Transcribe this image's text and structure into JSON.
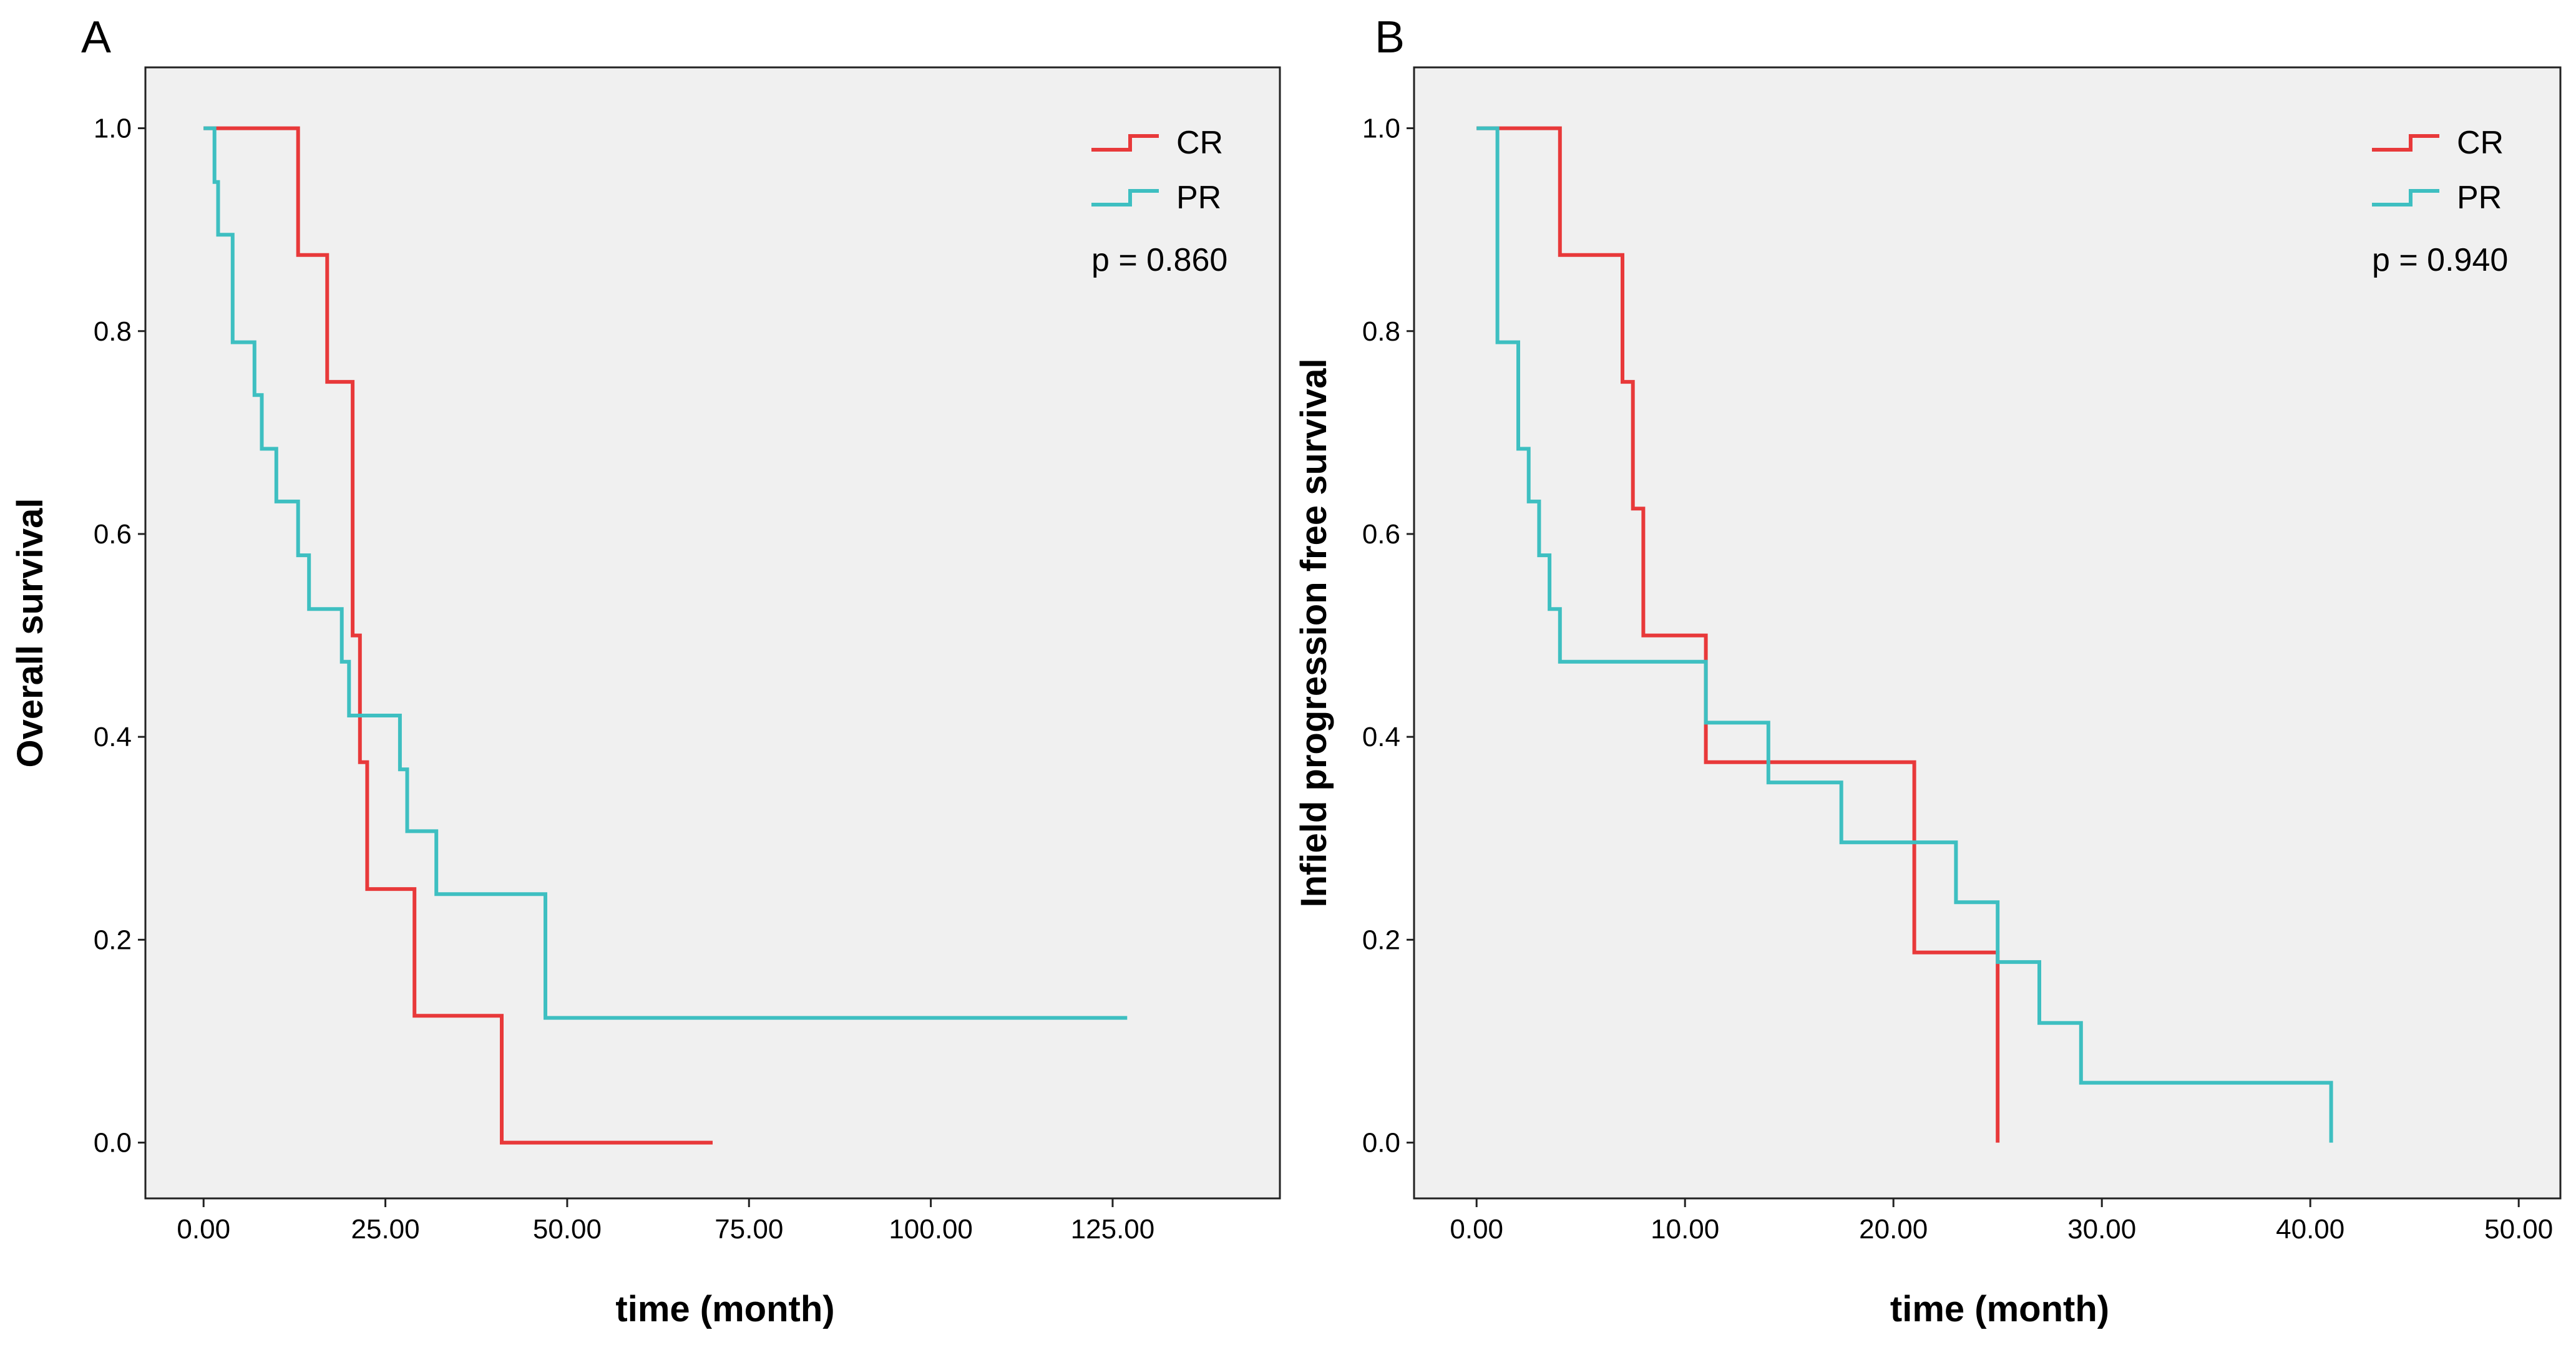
{
  "chart_data": [
    {
      "type": "line",
      "panel_label": "A",
      "title": "",
      "xlabel": "time (month)",
      "ylabel": "Overall survival",
      "xlim": [
        -8,
        148
      ],
      "ylim": [
        -0.055,
        1.06
      ],
      "xticks": [
        0,
        25,
        50,
        75,
        100,
        125
      ],
      "xtick_labels": [
        "0.00",
        "25.00",
        "50.00",
        "75.00",
        "100.00",
        "125.00"
      ],
      "yticks": [
        0.0,
        0.2,
        0.4,
        0.6,
        0.8,
        1.0
      ],
      "ytick_labels": [
        "0.0",
        "0.2",
        "0.4",
        "0.6",
        "0.8",
        "1.0"
      ],
      "grid": false,
      "legend_position": "top-right",
      "annotation": "p = 0.860",
      "series": [
        {
          "name": "CR",
          "color": "#e8393a",
          "x": [
            0,
            13,
            13,
            17,
            17,
            20.5,
            20.5,
            21.5,
            21.5,
            22.5,
            22.5,
            29,
            29,
            41,
            41,
            70,
            70
          ],
          "y": [
            1.0,
            1.0,
            0.875,
            0.875,
            0.75,
            0.75,
            0.5,
            0.5,
            0.375,
            0.375,
            0.25,
            0.25,
            0.125,
            0.125,
            0.0,
            0.0,
            0.0
          ]
        },
        {
          "name": "PR",
          "color": "#3ebfc1",
          "x": [
            0,
            1.5,
            1.5,
            2,
            2,
            4,
            4,
            7,
            7,
            8,
            8,
            10,
            10,
            13,
            13,
            14.5,
            14.5,
            19,
            19,
            20,
            20,
            27,
            27,
            28,
            28,
            32,
            32,
            47,
            47,
            127
          ],
          "y": [
            1.0,
            1.0,
            0.947,
            0.947,
            0.895,
            0.895,
            0.789,
            0.789,
            0.737,
            0.737,
            0.684,
            0.684,
            0.632,
            0.632,
            0.579,
            0.579,
            0.526,
            0.526,
            0.474,
            0.474,
            0.421,
            0.421,
            0.368,
            0.368,
            0.307,
            0.307,
            0.245,
            0.245,
            0.123,
            0.123
          ]
        }
      ]
    },
    {
      "type": "line",
      "panel_label": "B",
      "title": "",
      "xlabel": "time (month)",
      "ylabel": "Infield progression free survival",
      "xlim": [
        -3,
        52
      ],
      "ylim": [
        -0.055,
        1.06
      ],
      "xticks": [
        0,
        10,
        20,
        30,
        40,
        50
      ],
      "xtick_labels": [
        "0.00",
        "10.00",
        "20.00",
        "30.00",
        "40.00",
        "50.00"
      ],
      "yticks": [
        0.0,
        0.2,
        0.4,
        0.6,
        0.8,
        1.0
      ],
      "ytick_labels": [
        "0.0",
        "0.2",
        "0.4",
        "0.6",
        "0.8",
        "1.0"
      ],
      "grid": false,
      "legend_position": "top-right",
      "annotation": "p = 0.940",
      "series": [
        {
          "name": "CR",
          "color": "#e8393a",
          "x": [
            0,
            4,
            4,
            7,
            7,
            7.5,
            7.5,
            8,
            8,
            11,
            11,
            21,
            21,
            25,
            25
          ],
          "y": [
            1.0,
            1.0,
            0.875,
            0.875,
            0.75,
            0.75,
            0.625,
            0.625,
            0.5,
            0.5,
            0.375,
            0.375,
            0.1875,
            0.1875,
            0.0
          ]
        },
        {
          "name": "PR",
          "color": "#3ebfc1",
          "x": [
            0,
            1,
            1,
            2,
            2,
            2.5,
            2.5,
            3,
            3,
            3.5,
            3.5,
            4,
            4,
            11,
            11,
            14,
            14,
            17.5,
            17.5,
            23,
            23,
            25,
            25,
            27,
            27,
            29,
            29,
            41,
            41
          ],
          "y": [
            1.0,
            1.0,
            0.789,
            0.789,
            0.684,
            0.684,
            0.632,
            0.632,
            0.579,
            0.579,
            0.526,
            0.526,
            0.474,
            0.474,
            0.414,
            0.414,
            0.355,
            0.355,
            0.296,
            0.296,
            0.237,
            0.237,
            0.178,
            0.178,
            0.118,
            0.118,
            0.059,
            0.059,
            0.0
          ]
        }
      ]
    }
  ]
}
